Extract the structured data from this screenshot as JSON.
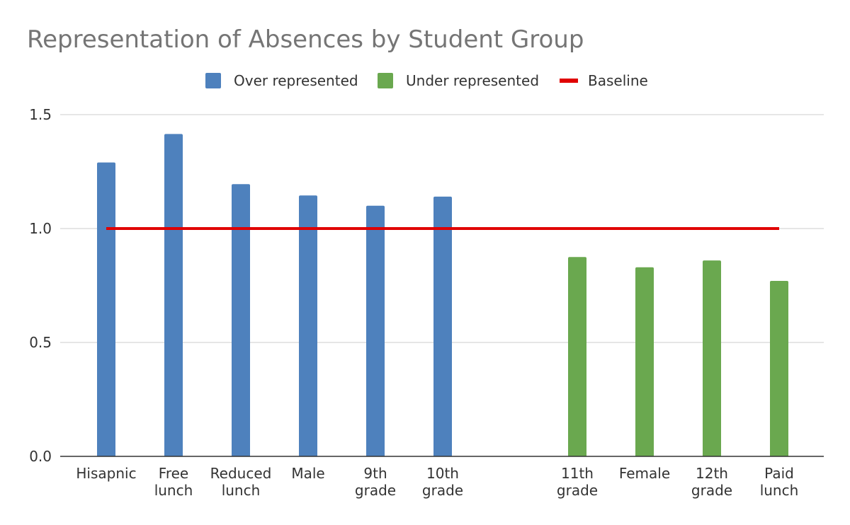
{
  "chart_data": {
    "type": "bar",
    "title": "Representation of Absences by Student Group",
    "categories": [
      [
        "Hisapnic"
      ],
      [
        "Free",
        "lunch"
      ],
      [
        "Reduced",
        "lunch"
      ],
      [
        "Male"
      ],
      [
        "9th",
        "grade"
      ],
      [
        "10th",
        "grade"
      ],
      [
        ""
      ],
      [
        "11th",
        "grade"
      ],
      [
        "Female"
      ],
      [
        "12th",
        "grade"
      ],
      [
        "Paid",
        "lunch"
      ]
    ],
    "series": [
      {
        "name": "Over represented",
        "color": "#4e81bd",
        "values": [
          1.29,
          1.415,
          1.195,
          1.145,
          1.1,
          1.14,
          null,
          null,
          null,
          null,
          null
        ]
      },
      {
        "name": "Under represented",
        "color": "#6aa84f",
        "values": [
          null,
          null,
          null,
          null,
          null,
          null,
          null,
          0.875,
          0.83,
          0.86,
          0.77
        ]
      }
    ],
    "baseline": {
      "name": "Baseline",
      "color": "#e00000",
      "value": 1.0
    },
    "xlabel": "",
    "ylabel": "",
    "ylim": [
      0,
      1.5
    ],
    "yticks": [
      "0.0",
      "0.5",
      "1.0",
      "1.5"
    ],
    "grid": true,
    "legend_position": "top-center"
  }
}
